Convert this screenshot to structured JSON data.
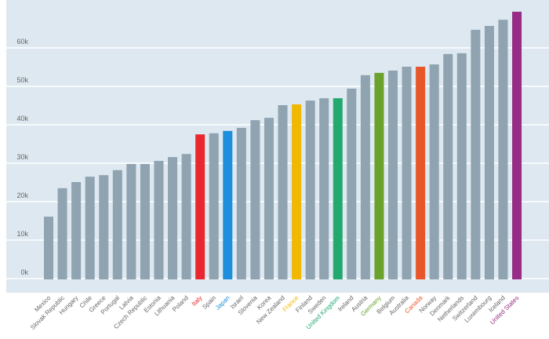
{
  "chart_data": {
    "type": "bar",
    "title": "",
    "xlabel": "",
    "ylabel": "",
    "ylim": [
      0,
      70000
    ],
    "grid": true,
    "y_ticks": [
      0,
      10000,
      20000,
      30000,
      40000,
      50000,
      60000
    ],
    "y_tick_labels": [
      "0k",
      "10k",
      "20k",
      "30k",
      "40k",
      "50k",
      "60k"
    ],
    "categories": [
      "Mexico",
      "Slovak Republic",
      "Hungary",
      "Chile",
      "Greece",
      "Portugal",
      "Latvia",
      "Czech Republic",
      "Estonia",
      "Lithuania",
      "Poland",
      "Italy",
      "Spain",
      "Japan",
      "Israel",
      "Slovenia",
      "Korea",
      "New Zealand",
      "France",
      "Finland",
      "Sweden",
      "United Kingdom",
      "Ireland",
      "Austria",
      "Germany",
      "Belgium",
      "Australia",
      "Canada",
      "Norway",
      "Denmark",
      "Netherlands",
      "Switzerland",
      "Luxembourg",
      "Iceland",
      "United States"
    ],
    "values": [
      16100,
      23500,
      25100,
      26500,
      26900,
      28200,
      29800,
      29800,
      30600,
      31600,
      32400,
      37500,
      37800,
      38400,
      39200,
      41200,
      41800,
      45100,
      45300,
      46300,
      46900,
      46900,
      49400,
      52900,
      53500,
      54100,
      55100,
      55100,
      55700,
      58400,
      58600,
      64700,
      65700,
      67300,
      69400
    ],
    "colors": {
      "default": "#8fa3b1",
      "background": "#dde8f0",
      "gridline": "#ffffff",
      "Italy": "#e8282e",
      "Japan": "#1e8fdc",
      "France": "#f0b800",
      "United Kingdom": "#23a96e",
      "Germany": "#6aa22c",
      "Canada": "#e8572a",
      "United States": "#962c86"
    }
  }
}
